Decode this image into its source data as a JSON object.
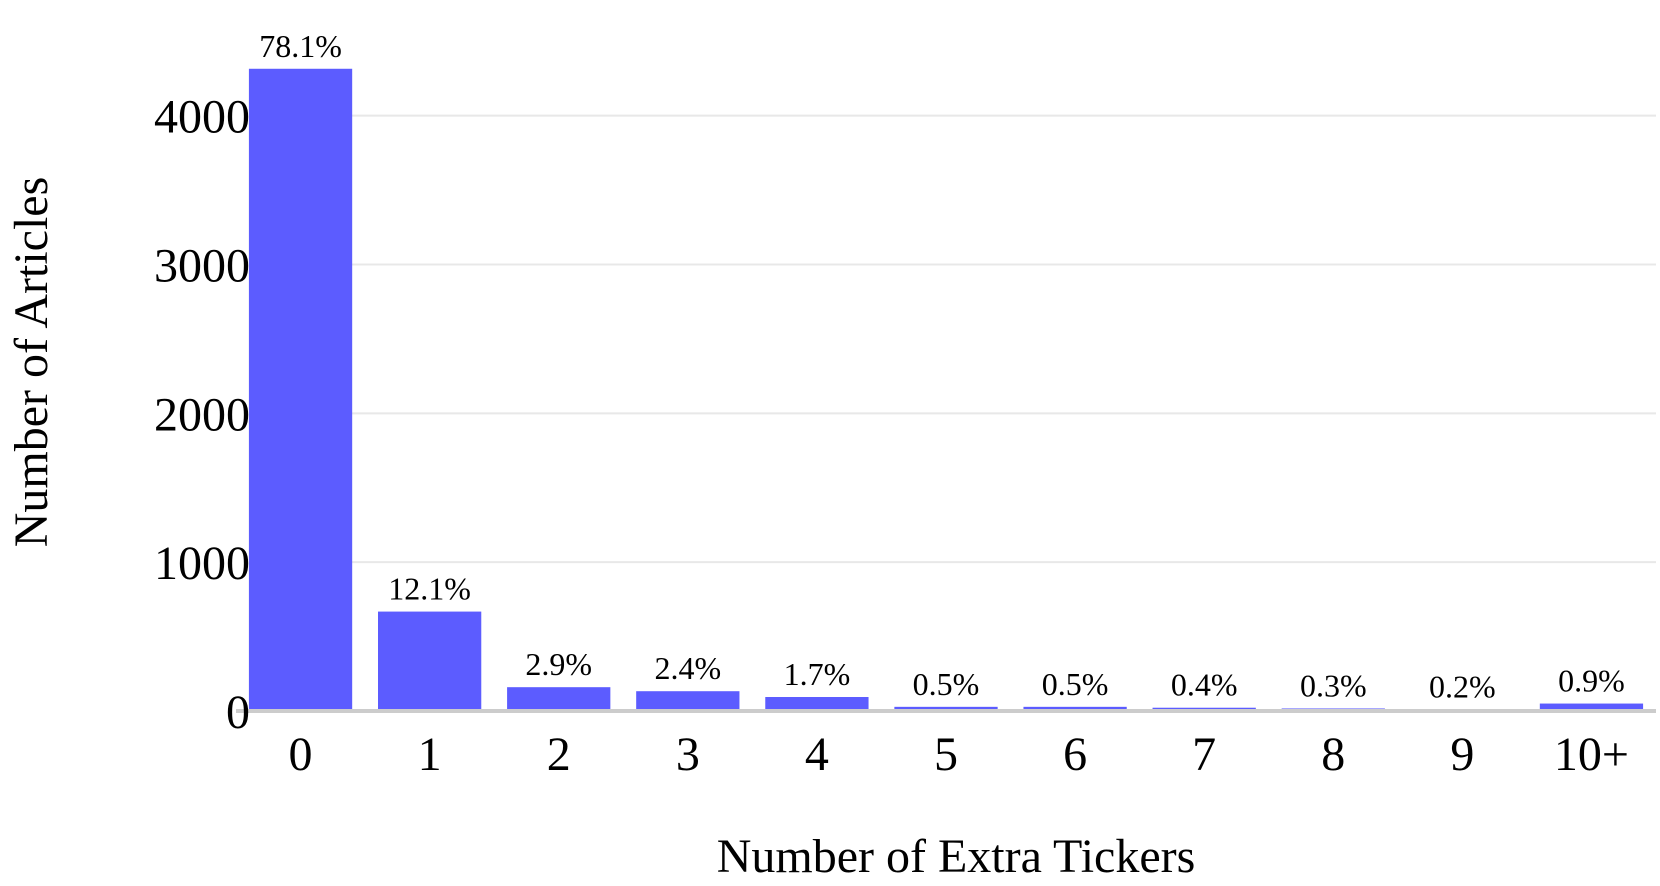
{
  "chart_data": {
    "type": "bar",
    "title": "",
    "xlabel": "Number of Extra Tickers",
    "ylabel": "Number of Articles",
    "categories": [
      "0",
      "1",
      "2",
      "3",
      "4",
      "5",
      "6",
      "7",
      "8",
      "9",
      "10+"
    ],
    "values": [
      4315,
      668,
      160,
      133,
      94,
      28,
      28,
      22,
      17,
      11,
      50
    ],
    "data_labels": [
      "78.1%",
      "12.1%",
      "2.9%",
      "2.4%",
      "1.7%",
      "0.5%",
      "0.5%",
      "0.4%",
      "0.3%",
      "0.2%",
      "0.9%"
    ],
    "yticks": [
      0,
      1000,
      2000,
      3000,
      4000
    ],
    "ylim": [
      0,
      4300
    ],
    "grid": true,
    "legend": "none",
    "colors": {
      "bar": "#5c5cff",
      "grid": "#e8e8e8",
      "baseline": "#cccccc"
    }
  }
}
